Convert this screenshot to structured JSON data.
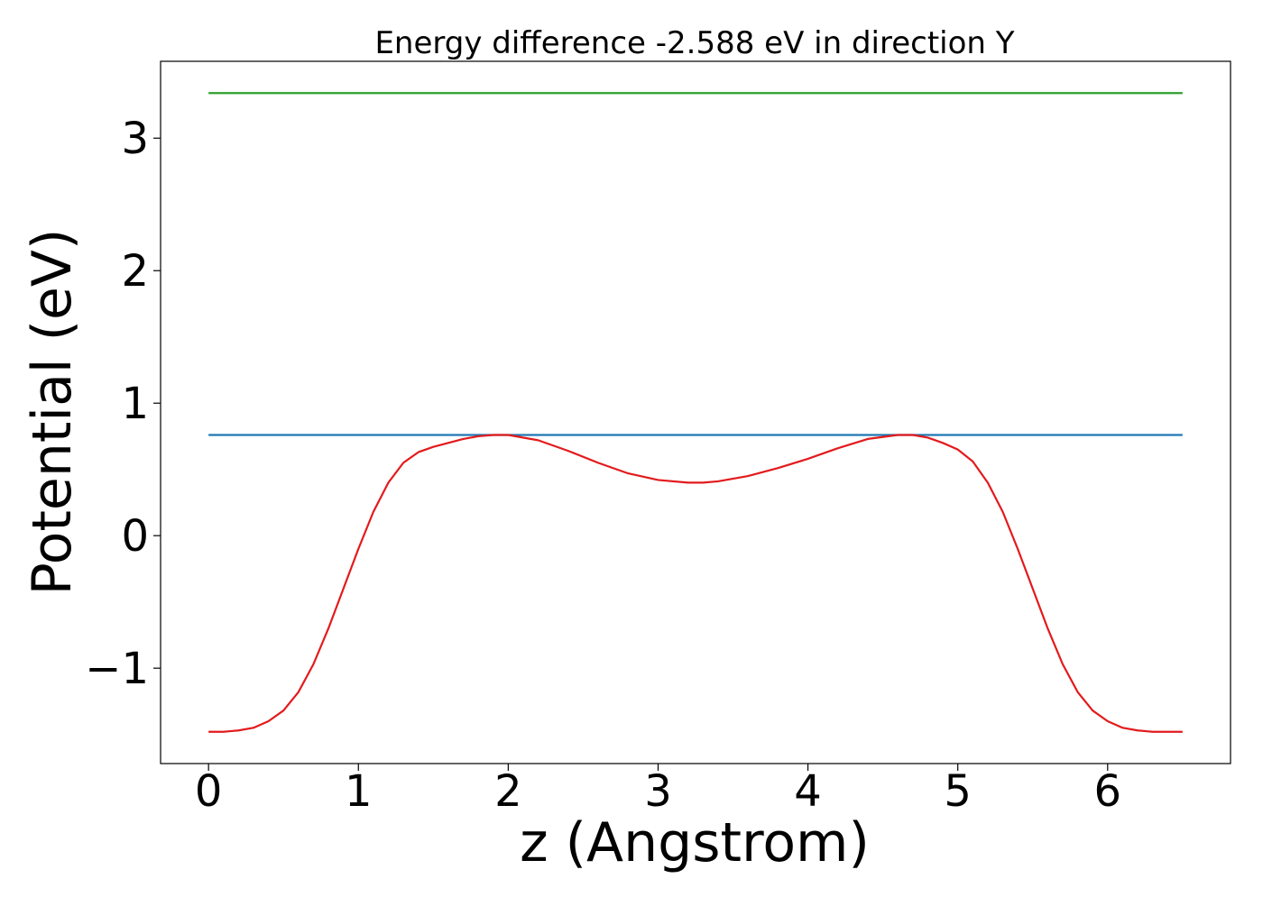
{
  "chart_data": {
    "type": "line",
    "title": "Energy difference -2.588 eV in direction Y",
    "xlabel": "z (Angstrom)",
    "ylabel": "Potential (eV)",
    "xlim": [
      -0.32,
      6.82
    ],
    "ylim": [
      -1.72,
      3.58
    ],
    "x_ticks": [
      0,
      1,
      2,
      3,
      4,
      5,
      6
    ],
    "x_tick_labels": [
      "0",
      "1",
      "2",
      "3",
      "4",
      "5",
      "6"
    ],
    "y_ticks": [
      -1,
      0,
      1,
      2,
      3
    ],
    "y_tick_labels": [
      "−1",
      "0",
      "1",
      "2",
      "3"
    ],
    "grid": false,
    "legend": "none",
    "series": [
      {
        "color": "#2ca02c",
        "x": [
          0,
          6.5
        ],
        "y": [
          3.34,
          3.34
        ]
      },
      {
        "color": "#1f77b4",
        "x": [
          0,
          6.5
        ],
        "y": [
          0.76,
          0.76
        ]
      },
      {
        "color": "#e31a1c",
        "x": [
          0,
          0.1,
          0.2,
          0.3,
          0.4,
          0.5,
          0.6,
          0.7,
          0.8,
          0.9,
          1.0,
          1.1,
          1.2,
          1.3,
          1.4,
          1.5,
          1.6,
          1.7,
          1.8,
          1.9,
          2.0,
          2.2,
          2.4,
          2.6,
          2.8,
          3.0,
          3.2,
          3.3,
          3.4,
          3.6,
          3.8,
          4.0,
          4.2,
          4.4,
          4.6,
          4.7,
          4.8,
          4.9,
          5.0,
          5.1,
          5.2,
          5.3,
          5.4,
          5.5,
          5.6,
          5.7,
          5.8,
          5.9,
          6.0,
          6.1,
          6.2,
          6.3,
          6.4,
          6.5
        ],
        "y": [
          -1.48,
          -1.48,
          -1.47,
          -1.45,
          -1.4,
          -1.32,
          -1.18,
          -0.97,
          -0.7,
          -0.4,
          -0.1,
          0.18,
          0.4,
          0.55,
          0.63,
          0.67,
          0.7,
          0.73,
          0.75,
          0.76,
          0.76,
          0.72,
          0.64,
          0.55,
          0.47,
          0.42,
          0.4,
          0.4,
          0.41,
          0.45,
          0.51,
          0.58,
          0.66,
          0.73,
          0.76,
          0.76,
          0.74,
          0.7,
          0.65,
          0.56,
          0.4,
          0.18,
          -0.1,
          -0.4,
          -0.7,
          -0.97,
          -1.18,
          -1.32,
          -1.4,
          -1.45,
          -1.47,
          -1.48,
          -1.48,
          -1.48
        ]
      }
    ]
  }
}
